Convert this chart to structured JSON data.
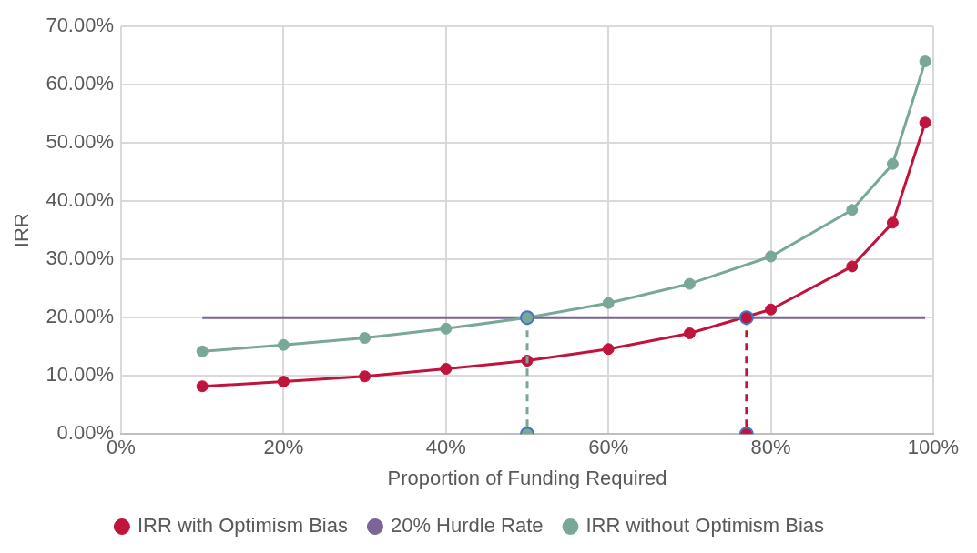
{
  "chart_data": {
    "type": "line",
    "xlabel": "Proportion of Funding Required",
    "ylabel": "IRR",
    "xlim": [
      0,
      100
    ],
    "xticks": [
      {
        "value": 0,
        "label": "0%"
      },
      {
        "value": 20,
        "label": "20%"
      },
      {
        "value": 40,
        "label": "40%"
      },
      {
        "value": 60,
        "label": "60%"
      },
      {
        "value": 80,
        "label": "80%"
      },
      {
        "value": 100,
        "label": "100%"
      }
    ],
    "ylim": [
      0,
      70
    ],
    "yticks": [
      {
        "value": 0,
        "label": "0.00%"
      },
      {
        "value": 10,
        "label": "10.00%"
      },
      {
        "value": 20,
        "label": "20.00%"
      },
      {
        "value": 30,
        "label": "30.00%"
      },
      {
        "value": 40,
        "label": "40.00%"
      },
      {
        "value": 50,
        "label": "50.00%"
      },
      {
        "value": 60,
        "label": "60.00%"
      },
      {
        "value": 70,
        "label": "70.00%"
      }
    ],
    "grid": true,
    "legend": "bottom",
    "series": [
      {
        "name": "IRR with Optimism Bias",
        "color": "#c0143c",
        "marker": "circle",
        "line_style": "solid",
        "x": [
          10,
          20,
          30,
          40,
          50,
          60,
          70,
          80,
          90,
          95,
          99
        ],
        "values": [
          8.2,
          9.0,
          9.9,
          11.2,
          12.6,
          14.6,
          17.3,
          21.4,
          28.8,
          36.3,
          53.5
        ]
      },
      {
        "name": "20% Hurdle Rate",
        "color": "#7b6496",
        "marker": "none",
        "line_style": "solid",
        "x": [
          10,
          99
        ],
        "values": [
          20,
          20
        ]
      },
      {
        "name": "IRR without Optimism Bias",
        "color": "#7aa898",
        "marker": "circle",
        "line_style": "solid",
        "x": [
          10,
          20,
          30,
          40,
          50,
          60,
          70,
          80,
          90,
          95,
          99
        ],
        "values": [
          14.2,
          15.3,
          16.5,
          18.1,
          20.0,
          22.5,
          25.8,
          30.5,
          38.5,
          46.4,
          64.0
        ]
      },
      {
        "color": "#7aa898",
        "marker": "circle",
        "line_style": "dashed",
        "x": [
          50,
          50
        ],
        "values": [
          20,
          0
        ]
      },
      {
        "color": "#c0143c",
        "marker": "circle",
        "line_style": "dashed",
        "x": [
          77,
          77
        ],
        "values": [
          20,
          0
        ]
      }
    ]
  }
}
